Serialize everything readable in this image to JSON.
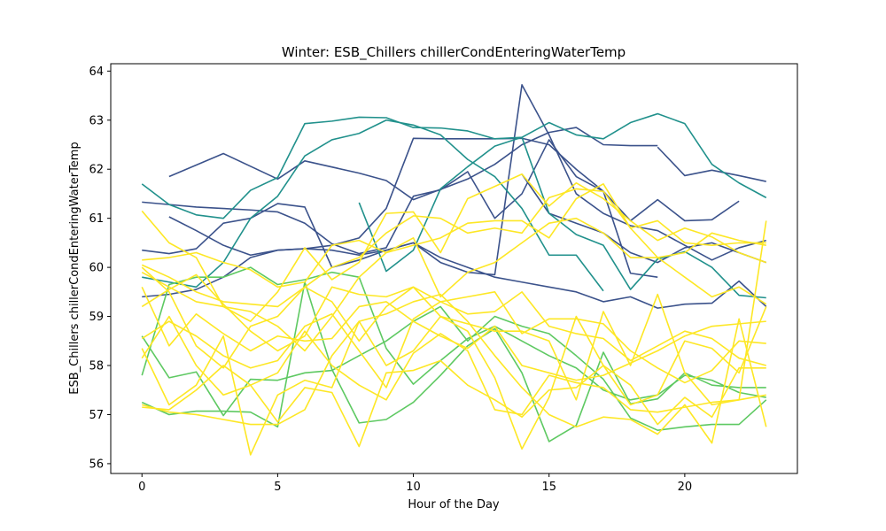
{
  "chart_data": {
    "type": "line",
    "title": "Winter: ESB_Chillers chillerCondEnteringWaterTemp",
    "xlabel": "Hour of the Day",
    "ylabel": "ESB_Chillers chillerCondEnteringWaterTemp",
    "xlim": [
      -1.15,
      24.15
    ],
    "ylim": [
      55.8,
      64.15
    ],
    "xticks": [
      0,
      5,
      10,
      15,
      20
    ],
    "yticks": [
      56,
      57,
      58,
      59,
      60,
      61,
      62,
      63,
      64
    ],
    "legend": "none",
    "grid": false,
    "colors": {
      "dark_blue": "#3b528b",
      "teal": "#21918c",
      "green": "#5ec962",
      "yellow": "#fde725"
    },
    "series": [
      {
        "color": "#3b528b",
        "x": [
          1,
          3,
          5,
          6,
          8,
          9,
          10,
          12,
          13,
          14,
          15,
          16,
          17,
          18,
          19
        ],
        "y": [
          61.85,
          62.32,
          61.8,
          62.17,
          61.92,
          61.77,
          61.38,
          61.8,
          62.1,
          62.5,
          62.75,
          62.85,
          62.5,
          62.48,
          62.48
        ]
      },
      {
        "color": "#3b528b",
        "x": [
          19,
          20,
          21,
          22,
          23
        ],
        "y": [
          62.45,
          61.87,
          61.98,
          61.87,
          61.75
        ]
      },
      {
        "color": "#3b528b",
        "x": [
          0,
          1,
          2,
          3,
          4,
          5,
          6,
          7,
          8,
          9,
          10,
          11,
          12,
          13,
          14,
          15,
          16,
          17,
          18,
          19,
          20,
          21,
          22
        ],
        "y": [
          61.33,
          61.28,
          61.23,
          61.2,
          61.17,
          61.13,
          60.9,
          60.48,
          60.28,
          60.4,
          61.45,
          61.58,
          61.95,
          61.0,
          61.5,
          62.6,
          61.85,
          61.55,
          60.95,
          61.38,
          60.95,
          60.97,
          61.35
        ]
      },
      {
        "color": "#3b528b",
        "x": [
          1,
          2,
          3,
          4,
          5,
          6,
          7,
          8,
          9,
          10,
          11,
          12,
          13,
          14,
          15,
          16,
          17,
          18,
          19
        ],
        "y": [
          61.03,
          60.75,
          60.45,
          60.25,
          60.35,
          60.38,
          60.45,
          60.6,
          61.2,
          62.63,
          62.62,
          62.62,
          62.62,
          62.63,
          62.5,
          62.0,
          61.55,
          59.88,
          59.8
        ]
      },
      {
        "color": "#3b528b",
        "x": [
          0,
          1,
          2,
          3,
          4,
          5,
          6,
          7,
          8,
          9,
          10,
          11,
          12,
          13,
          14,
          15,
          16,
          17,
          18,
          19,
          20,
          21,
          22,
          23
        ],
        "y": [
          60.35,
          60.28,
          60.38,
          60.9,
          61.0,
          61.3,
          61.23,
          60.0,
          60.15,
          60.35,
          60.5,
          60.2,
          60.0,
          59.8,
          59.7,
          59.6,
          59.5,
          59.3,
          59.4,
          59.17,
          59.25,
          59.27,
          59.72,
          59.2
        ]
      },
      {
        "color": "#3b528b",
        "x": [
          0,
          1,
          2,
          3,
          4,
          5,
          6,
          7,
          8,
          9,
          10,
          11,
          12,
          13,
          14,
          15,
          16,
          17,
          18,
          19,
          20,
          21,
          22,
          23
        ],
        "y": [
          59.4,
          59.45,
          59.55,
          59.8,
          60.2,
          60.35,
          60.38,
          60.35,
          60.25,
          60.35,
          60.5,
          60.1,
          59.9,
          59.85,
          63.72,
          62.7,
          61.5,
          61.1,
          60.85,
          60.75,
          60.45,
          60.15,
          60.4,
          60.55
        ]
      },
      {
        "color": "#3b528b",
        "x": [
          14,
          15,
          16,
          17,
          18,
          19,
          20,
          21,
          22,
          23
        ],
        "y": [
          61.9,
          61.1,
          60.9,
          60.7,
          60.3,
          60.1,
          60.4,
          60.5,
          60.3,
          60.1
        ]
      },
      {
        "color": "#21918c",
        "x": [
          0,
          1,
          2,
          3,
          4,
          5,
          6,
          7,
          8,
          9,
          10,
          11,
          12,
          13,
          14,
          15,
          16,
          17,
          18,
          19,
          20,
          21,
          22,
          23
        ],
        "y": [
          61.7,
          61.28,
          61.07,
          61.0,
          61.57,
          61.83,
          62.93,
          62.98,
          63.06,
          63.05,
          62.85,
          62.84,
          62.78,
          62.62,
          62.65,
          62.95,
          62.7,
          62.62,
          62.95,
          63.13,
          62.93,
          62.1,
          61.72,
          61.42
        ]
      },
      {
        "color": "#21918c",
        "x": [
          0,
          1,
          2,
          3,
          4,
          5,
          6,
          7,
          8,
          9,
          10,
          11,
          12,
          13,
          14,
          15,
          16,
          17,
          18,
          19,
          20,
          21,
          22,
          23
        ],
        "y": [
          59.8,
          59.7,
          59.6,
          60.1,
          61.0,
          61.45,
          62.27,
          62.6,
          62.73,
          63.0,
          62.9,
          62.7,
          62.2,
          61.85,
          61.2,
          60.25,
          60.25,
          59.52,
          null,
          null,
          null,
          null,
          null,
          null
        ]
      },
      {
        "color": "#21918c",
        "x": [
          8,
          9,
          10,
          11,
          12,
          13,
          14,
          15,
          16,
          17,
          18,
          19,
          20,
          21,
          22,
          23
        ],
        "y": [
          61.32,
          59.92,
          60.35,
          61.6,
          62.05,
          62.47,
          62.65,
          61.1,
          60.67,
          60.45,
          59.55,
          60.17,
          60.32,
          60.0,
          59.43,
          59.38
        ]
      },
      {
        "color": "#5ec962",
        "x": [
          0,
          1,
          2,
          3,
          4,
          5,
          6,
          7,
          8,
          9,
          10,
          11,
          12,
          13,
          14,
          15,
          16,
          17,
          18,
          19,
          20,
          21,
          22,
          23
        ],
        "y": [
          57.25,
          57.0,
          57.07,
          57.07,
          57.05,
          56.75,
          59.7,
          57.92,
          56.83,
          56.9,
          57.25,
          57.8,
          58.4,
          58.75,
          57.85,
          56.45,
          56.78,
          58.27,
          57.22,
          57.32,
          57.85,
          57.6,
          57.55,
          57.55
        ]
      },
      {
        "color": "#5ec962",
        "x": [
          0,
          1,
          2,
          3,
          4,
          5,
          6,
          7,
          8,
          9,
          10,
          11,
          12,
          13,
          14,
          15,
          16,
          17,
          18,
          19,
          20,
          21,
          22,
          23
        ],
        "y": [
          58.6,
          57.75,
          57.87,
          56.98,
          57.72,
          57.7,
          57.85,
          57.9,
          58.2,
          58.5,
          58.9,
          59.2,
          58.5,
          59.0,
          58.8,
          58.65,
          58.2,
          57.72,
          56.93,
          56.68,
          56.75,
          56.8,
          56.8,
          57.3
        ]
      },
      {
        "color": "#5ec962",
        "x": [
          0,
          1,
          2,
          3,
          4,
          5,
          6,
          7,
          8,
          9,
          10,
          11,
          12,
          13,
          14,
          15,
          16,
          17,
          18,
          19,
          20,
          21,
          22,
          23
        ],
        "y": [
          57.8,
          59.65,
          59.8,
          59.8,
          60.0,
          59.65,
          59.75,
          59.9,
          59.8,
          58.35,
          57.62,
          58.1,
          58.55,
          58.8,
          58.5,
          58.2,
          57.95,
          57.5,
          57.3,
          57.4,
          57.8,
          57.7,
          57.45,
          57.35
        ]
      },
      {
        "color": "#fde725",
        "x": [
          0,
          1,
          2,
          3,
          4,
          5,
          6,
          7,
          8,
          9,
          10,
          11,
          12,
          13,
          14,
          15,
          16,
          17,
          18,
          19,
          20,
          21,
          22,
          23
        ],
        "y": [
          61.15,
          60.5,
          60.2,
          59.2,
          58.9,
          59.5,
          60.4,
          59.75,
          60.1,
          61.1,
          61.13,
          60.3,
          61.4,
          61.65,
          61.9,
          61.25,
          61.72,
          61.4,
          60.95,
          60.55,
          60.8,
          60.62,
          60.3,
          60.1
        ]
      },
      {
        "color": "#fde725",
        "x": [
          0,
          1,
          2,
          3,
          4,
          5,
          6,
          7,
          8,
          9,
          10,
          11,
          12,
          13,
          14,
          15,
          16,
          17,
          18,
          19,
          20,
          21,
          22,
          23
        ],
        "y": [
          60.15,
          60.2,
          60.3,
          60.1,
          59.95,
          59.6,
          59.7,
          60.45,
          60.55,
          60.3,
          60.45,
          60.6,
          60.9,
          60.95,
          60.95,
          60.6,
          61.4,
          61.7,
          60.8,
          60.95,
          60.5,
          60.45,
          60.5,
          60.5
        ]
      },
      {
        "color": "#fde725",
        "x": [
          0,
          1,
          2,
          3,
          4,
          5,
          6,
          7,
          8,
          9,
          10,
          11,
          12,
          13,
          14,
          15,
          16,
          17,
          18,
          19,
          20,
          21,
          22,
          23
        ],
        "y": [
          60.05,
          59.8,
          59.5,
          59.3,
          59.25,
          59.2,
          59.6,
          60.0,
          60.2,
          60.7,
          61.05,
          61.0,
          60.7,
          60.8,
          60.7,
          61.42,
          61.6,
          61.55,
          60.8,
          60.2,
          60.3,
          60.7,
          60.55,
          60.45
        ]
      },
      {
        "color": "#fde725",
        "x": [
          0,
          1,
          2,
          3,
          4,
          5,
          6,
          7,
          8,
          9,
          10,
          11,
          12,
          13,
          14,
          15,
          16,
          17,
          18,
          19,
          20,
          21,
          22,
          23
        ],
        "y": [
          59.9,
          59.6,
          59.3,
          59.2,
          59.1,
          58.8,
          58.3,
          59.0,
          59.8,
          60.3,
          60.6,
          59.4,
          59.9,
          60.1,
          60.5,
          60.9,
          61.0,
          60.7,
          60.2,
          60.2,
          59.8,
          59.4,
          59.6,
          59.25
        ]
      },
      {
        "color": "#fde725",
        "x": [
          0,
          1,
          2,
          3,
          4,
          5,
          6,
          7,
          8,
          9,
          10,
          11,
          12,
          13,
          14,
          15,
          16,
          17,
          18,
          19,
          20,
          21,
          22,
          23
        ],
        "y": [
          59.2,
          59.55,
          59.85,
          59.25,
          58.7,
          58.3,
          58.6,
          59.6,
          59.45,
          59.4,
          59.6,
          59.3,
          59.05,
          59.1,
          59.5,
          58.8,
          58.65,
          58.55,
          58.1,
          58.4,
          58.7,
          58.55,
          58.15,
          58.0
        ]
      },
      {
        "color": "#fde725",
        "x": [
          0,
          1,
          2,
          3,
          4,
          5,
          6,
          7,
          8,
          9,
          10,
          11,
          12,
          13,
          14,
          15,
          16,
          17,
          18,
          19,
          20,
          21,
          22,
          23
        ],
        "y": [
          58.55,
          58.9,
          58.6,
          58.2,
          57.95,
          58.1,
          58.8,
          59.05,
          58.3,
          57.55,
          58.95,
          59.3,
          59.4,
          59.5,
          58.65,
          58.95,
          58.95,
          58.85,
          58.3,
          57.95,
          57.65,
          57.9,
          58.5,
          58.45
        ]
      },
      {
        "color": "#fde725",
        "x": [
          0,
          1,
          2,
          3,
          4,
          5,
          6,
          7,
          8,
          9,
          10,
          11,
          12,
          13,
          14,
          15,
          16,
          17,
          18,
          19,
          20,
          21,
          22,
          23
        ],
        "y": [
          58.15,
          59.0,
          58.0,
          57.4,
          57.6,
          57.85,
          58.7,
          58.0,
          57.6,
          57.3,
          58.25,
          58.65,
          58.3,
          57.1,
          57.0,
          57.8,
          57.65,
          57.55,
          57.1,
          57.05,
          57.15,
          57.25,
          57.3,
          57.4
        ]
      },
      {
        "color": "#fde725",
        "x": [
          0,
          1,
          2,
          3,
          4,
          5,
          6,
          7,
          8,
          9,
          10,
          11,
          12,
          13,
          14,
          15,
          16,
          17,
          18,
          19,
          20,
          21,
          22,
          23
        ],
        "y": [
          57.2,
          57.05,
          57.0,
          56.9,
          56.8,
          56.8,
          57.1,
          58.2,
          58.9,
          59.05,
          59.3,
          59.45,
          58.9,
          58.2,
          57.55,
          57.0,
          56.75,
          56.95,
          56.9,
          56.6,
          57.2,
          56.42,
          58.95,
          56.75
        ]
      },
      {
        "color": "#fde725",
        "x": [
          0,
          1,
          2,
          3,
          4,
          5,
          6,
          7,
          8,
          9,
          10,
          11,
          12,
          13,
          14,
          15,
          16,
          17,
          18,
          19,
          20,
          21,
          22,
          23
        ],
        "y": [
          58.35,
          57.2,
          57.6,
          58.6,
          56.18,
          57.4,
          57.7,
          57.55,
          58.9,
          58.0,
          58.3,
          59.0,
          58.7,
          57.75,
          56.3,
          57.35,
          59.0,
          58.0,
          57.2,
          57.4,
          58.5,
          58.35,
          57.85,
          59.2
        ]
      },
      {
        "color": "#fde725",
        "x": [
          0,
          1,
          2,
          3,
          4,
          5,
          6,
          7,
          8,
          9,
          10,
          11,
          12,
          13,
          14,
          15,
          16,
          17,
          18,
          19,
          20,
          21,
          22,
          23
        ],
        "y": [
          57.15,
          57.1,
          57.5,
          58.0,
          57.6,
          56.85,
          57.55,
          57.45,
          56.35,
          57.85,
          57.9,
          58.1,
          57.6,
          57.3,
          56.95,
          57.5,
          57.55,
          58.0,
          57.6,
          56.8,
          57.35,
          56.95,
          57.95,
          57.95
        ]
      },
      {
        "color": "#fde725",
        "x": [
          0,
          1,
          2,
          3,
          4,
          5,
          6,
          7,
          8,
          9,
          10,
          11,
          12,
          13,
          14,
          15,
          16,
          17,
          18,
          19,
          20,
          21,
          22,
          23
        ],
        "y": [
          60.0,
          59.5,
          58.4,
          57.95,
          58.8,
          59.0,
          59.6,
          59.3,
          58.5,
          59.2,
          59.6,
          59.0,
          58.85,
          58.7,
          58.7,
          58.5,
          57.3,
          59.1,
          58.0,
          59.45,
          57.85,
          57.2,
          57.3,
          60.95
        ]
      },
      {
        "color": "#fde725",
        "x": [
          0,
          1,
          2,
          3,
          4,
          5,
          6,
          7,
          8,
          9,
          10,
          11,
          12,
          13,
          14,
          15,
          16,
          17,
          18,
          19,
          20,
          21,
          22,
          23
        ],
        "y": [
          59.6,
          58.4,
          59.05,
          58.65,
          58.3,
          58.6,
          58.5,
          58.55,
          59.2,
          59.3,
          58.9,
          58.6,
          58.35,
          58.8,
          58.0,
          57.85,
          57.7,
          57.8,
          58.05,
          58.3,
          58.6,
          58.8,
          58.85,
          58.9
        ]
      }
    ]
  }
}
